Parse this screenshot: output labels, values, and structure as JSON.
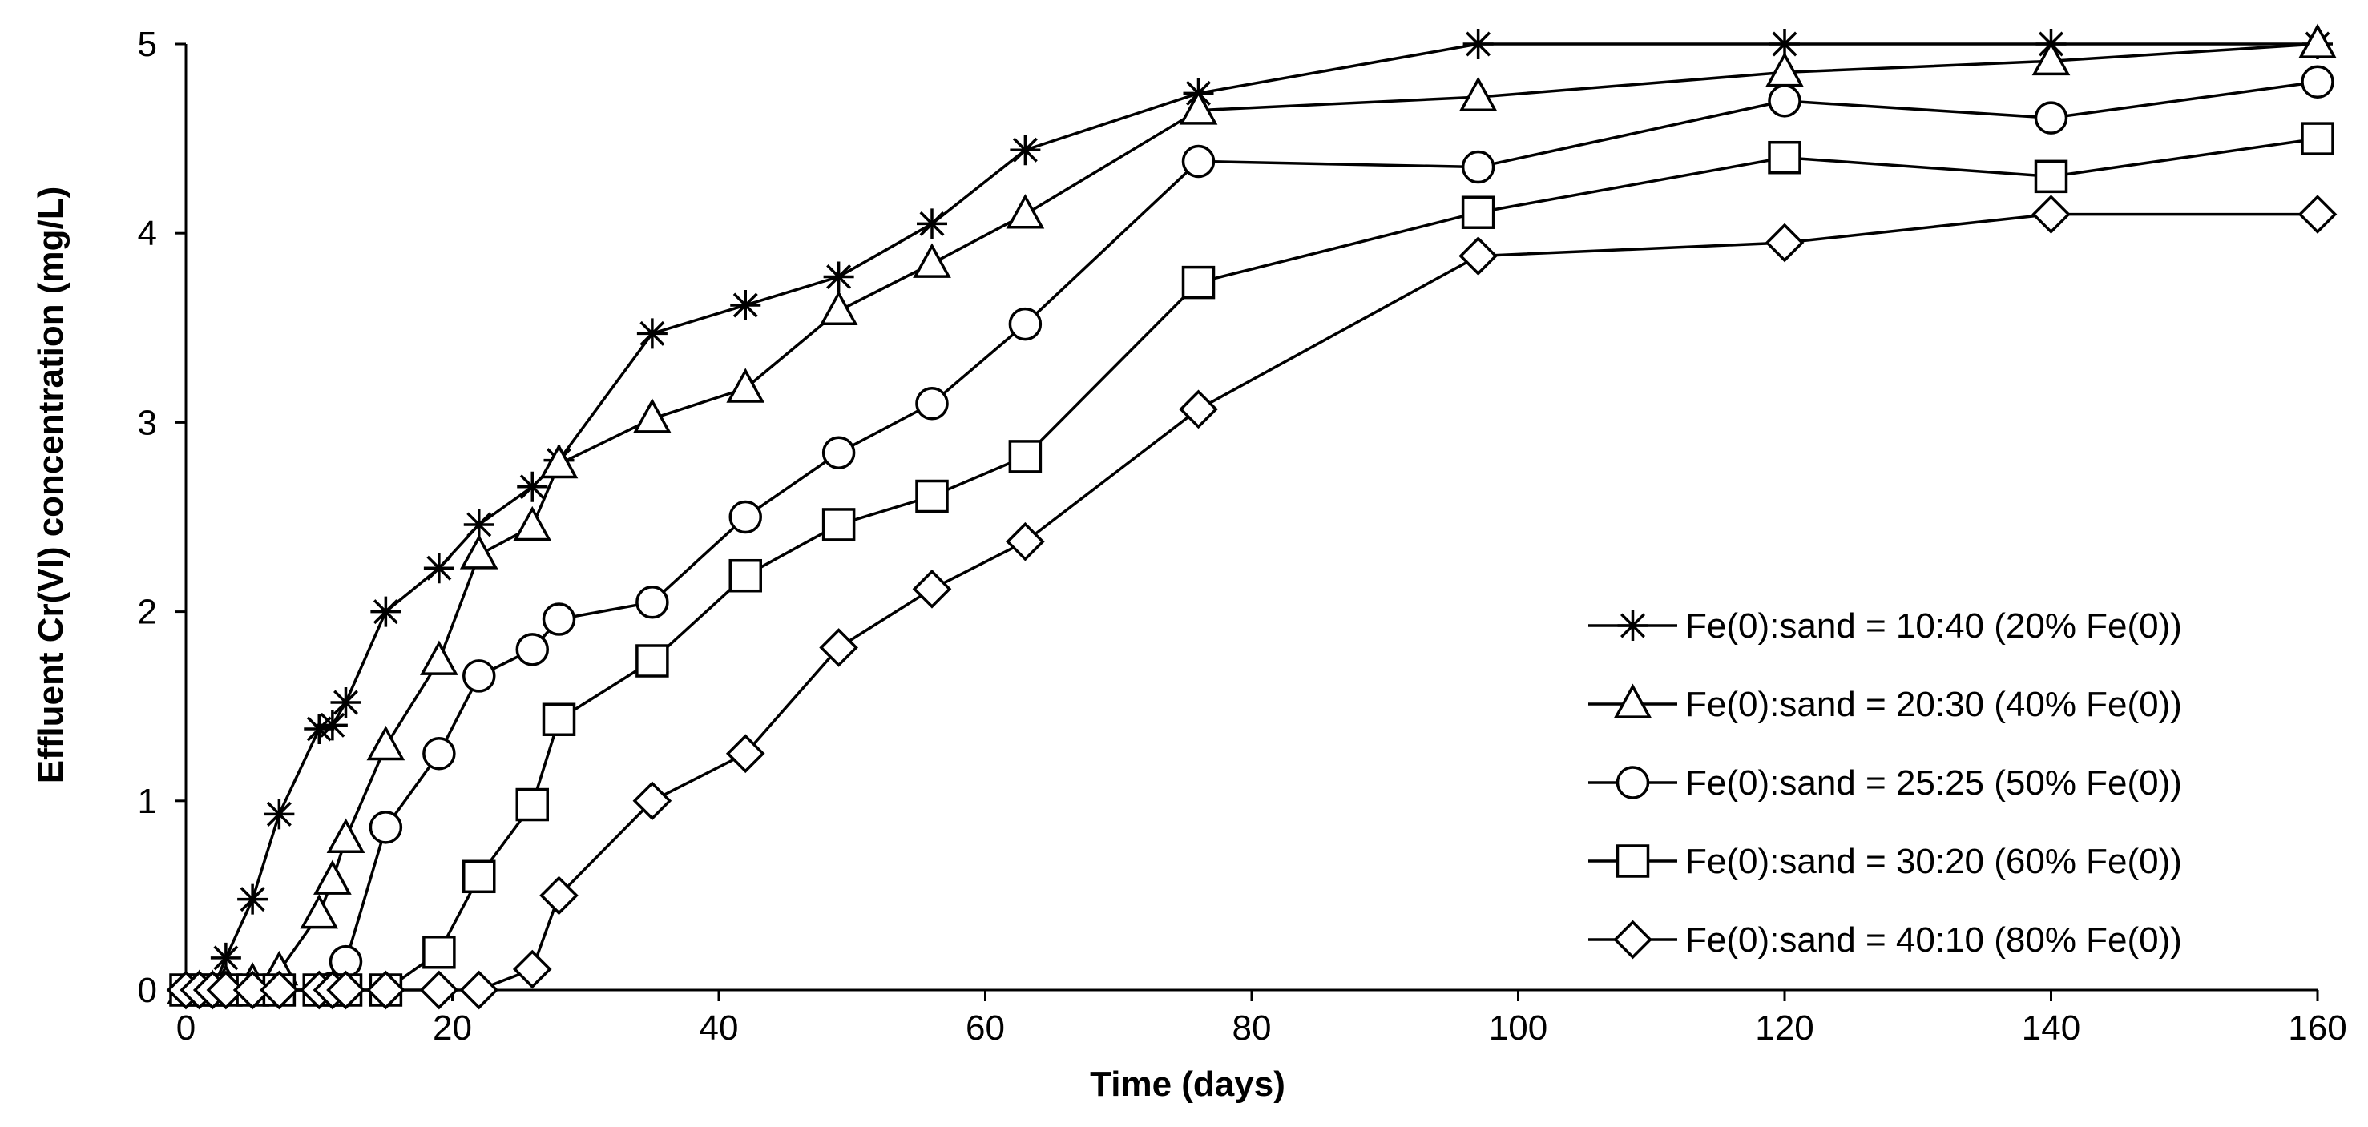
{
  "chart_data": {
    "type": "line",
    "title": "",
    "xlabel": "Time (days)",
    "ylabel": "Effluent Cr(VI) concentration (mg/L)",
    "xlim": [
      0,
      160
    ],
    "ylim": [
      0,
      5
    ],
    "xticks": [
      0,
      20,
      40,
      60,
      80,
      100,
      120,
      140,
      160
    ],
    "yticks": [
      0,
      1,
      2,
      3,
      4,
      5
    ],
    "grid": false,
    "legend_position": "bottom-right",
    "series": [
      {
        "name": "Fe(0):sand = 10:40 (20% Fe(0))",
        "marker": "asterisk",
        "x": [
          0,
          1,
          2,
          3,
          5,
          7,
          10,
          11,
          12,
          15,
          19,
          22,
          26,
          28,
          35,
          42,
          49,
          56,
          63,
          76,
          97,
          120,
          140,
          160
        ],
        "y": [
          0,
          0,
          0,
          0.17,
          0.48,
          0.93,
          1.38,
          1.4,
          1.52,
          2.0,
          2.23,
          2.46,
          2.66,
          2.8,
          3.47,
          3.62,
          3.77,
          4.05,
          4.44,
          4.74,
          5.0,
          5.0,
          5.0,
          5.0
        ]
      },
      {
        "name": "Fe(0):sand = 20:30 (40% Fe(0))",
        "marker": "triangle",
        "x": [
          0,
          1,
          2,
          3,
          5,
          7,
          10,
          11,
          12,
          15,
          19,
          22,
          26,
          28,
          35,
          42,
          49,
          56,
          63,
          76,
          97,
          120,
          140,
          160
        ],
        "y": [
          0,
          0,
          0,
          0.03,
          0.04,
          0.1,
          0.4,
          0.58,
          0.8,
          1.29,
          1.74,
          2.3,
          2.45,
          2.78,
          3.02,
          3.18,
          3.59,
          3.84,
          4.1,
          4.65,
          4.72,
          4.85,
          4.91,
          5.0
        ]
      },
      {
        "name": "Fe(0):sand = 25:25 (50% Fe(0))",
        "marker": "circle",
        "x": [
          0,
          1,
          2,
          3,
          5,
          7,
          10,
          11,
          12,
          15,
          19,
          22,
          26,
          28,
          35,
          42,
          49,
          56,
          63,
          76,
          97,
          120,
          140,
          160
        ],
        "y": [
          0,
          0,
          0,
          0,
          0,
          0,
          0,
          0.01,
          0.15,
          0.86,
          1.25,
          1.66,
          1.8,
          1.96,
          2.05,
          2.5,
          2.84,
          3.1,
          3.52,
          4.38,
          4.35,
          4.7,
          4.61,
          4.8
        ]
      },
      {
        "name": "Fe(0):sand = 30:20 (60% Fe(0))",
        "marker": "square",
        "x": [
          0,
          1,
          2,
          3,
          5,
          7,
          10,
          11,
          12,
          15,
          19,
          22,
          26,
          28,
          35,
          42,
          49,
          56,
          63,
          76,
          97,
          120,
          140,
          160
        ],
        "y": [
          0,
          0,
          0,
          0,
          0,
          0,
          0,
          0,
          0,
          0,
          0.2,
          0.6,
          0.98,
          1.43,
          1.74,
          2.19,
          2.46,
          2.61,
          2.82,
          3.74,
          4.11,
          4.4,
          4.3,
          4.5
        ]
      },
      {
        "name": "Fe(0):sand = 40:10 (80% Fe(0))",
        "marker": "diamond",
        "x": [
          0,
          1,
          2,
          3,
          5,
          7,
          10,
          11,
          12,
          15,
          19,
          22,
          26,
          28,
          35,
          42,
          49,
          56,
          63,
          76,
          97,
          120,
          140,
          160
        ],
        "y": [
          0,
          0,
          0,
          0,
          0,
          0,
          0,
          0,
          0,
          0,
          0,
          0,
          0.11,
          0.5,
          1.0,
          1.25,
          1.81,
          2.12,
          2.37,
          3.07,
          3.88,
          3.95,
          4.1,
          4.1
        ]
      }
    ]
  }
}
